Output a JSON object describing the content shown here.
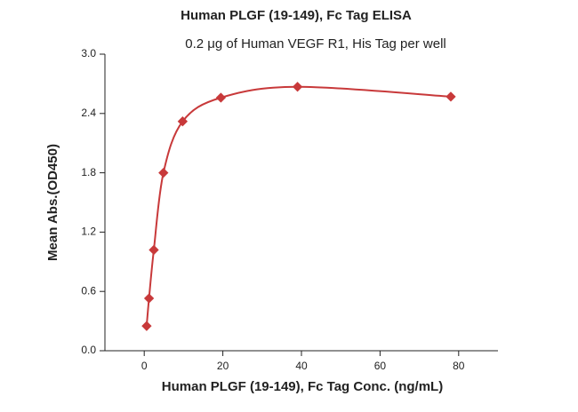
{
  "chart_data": {
    "type": "scatter",
    "title": "Human PLGF (19-149), Fc Tag ELISA",
    "subtitle": "0.2 μg of Human VEGF R1, His Tag per well",
    "x_label": "Human PLGF (19-149), Fc Tag Conc. (ng/mL)",
    "y_label": "Mean Abs.(OD450)",
    "x": [
      0.61,
      1.22,
      2.44,
      4.88,
      9.77,
      19.5,
      39,
      78
    ],
    "values": [
      0.25,
      0.53,
      1.02,
      1.8,
      2.32,
      2.56,
      2.67,
      2.57
    ],
    "color": "#c8393a",
    "xlim": [
      -10,
      90
    ],
    "xticks": [
      0,
      20,
      40,
      60,
      80
    ],
    "ylim": [
      0,
      3.0
    ],
    "yticks": [
      {
        "value": 0,
        "label": "0.0"
      },
      0.6,
      1.2,
      1.8,
      2.4,
      {
        "value": 3.0,
        "label": "3.0"
      }
    ]
  }
}
